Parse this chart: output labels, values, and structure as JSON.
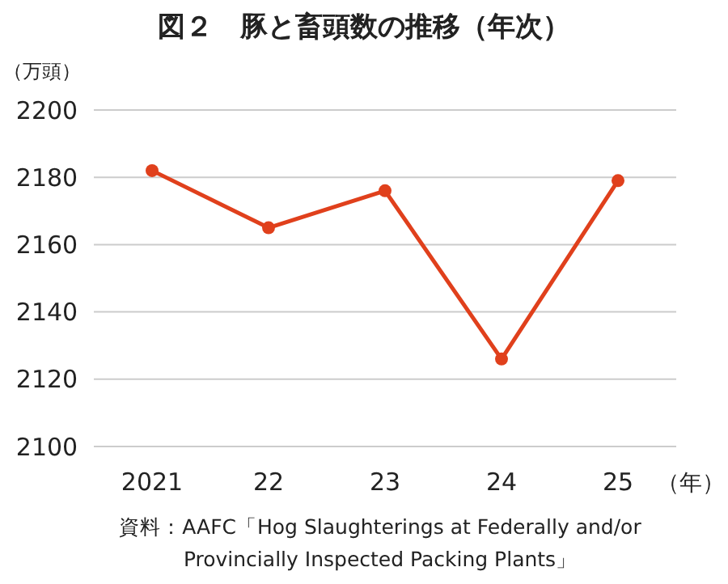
{
  "chart_data": {
    "type": "line",
    "title": "図２　豚と畜頭数の推移（年次）",
    "ylabel": "（万頭）",
    "xlabel": "（年）",
    "categories": [
      "2021",
      "22",
      "23",
      "24",
      "25"
    ],
    "series": [
      {
        "color": "#e0401c",
        "values": [
          2182,
          2165,
          2176,
          2126,
          2179
        ]
      }
    ],
    "ylim": [
      2100,
      2200
    ],
    "yticks": [
      2100,
      2120,
      2140,
      2160,
      2180,
      2200
    ],
    "grid": "y",
    "marker": "circle",
    "annotations": [
      "資料：AAFC「Hog Slaughterings at Federally and/or Provincially Inspected Packing Plants」"
    ]
  }
}
